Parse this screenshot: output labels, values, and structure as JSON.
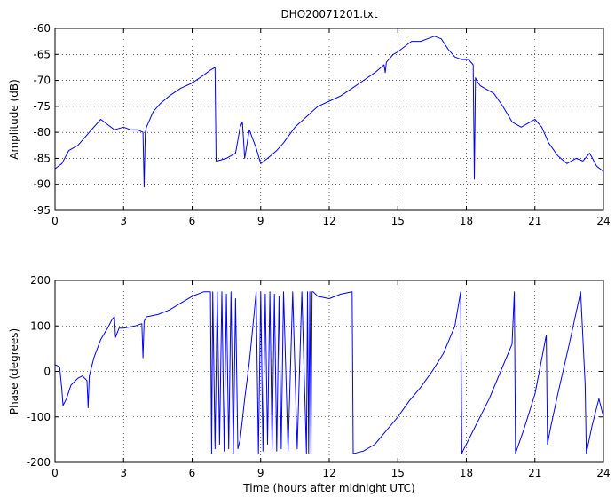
{
  "chart_data": [
    {
      "type": "line",
      "title": "DHO20071201.txt",
      "xlabel": "",
      "ylabel": "Amplitude (dB)",
      "xlim": [
        0,
        24
      ],
      "ylim": [
        -95,
        -60
      ],
      "xticks": [
        0,
        3,
        6,
        9,
        12,
        15,
        18,
        21,
        24
      ],
      "xtick_labels": [
        "0",
        "3",
        "6",
        "9",
        "12",
        "15",
        "18",
        "21",
        "24"
      ],
      "yticks": [
        -95,
        -90,
        -85,
        -80,
        -75,
        -70,
        -65,
        -60
      ],
      "ytick_labels": [
        "-95",
        "-90",
        "-85",
        "-80",
        "-75",
        "-70",
        "-65",
        "-60"
      ],
      "grid": "dotted",
      "color": "#0000ff",
      "series": [
        {
          "x": [
            0,
            0.3,
            0.6,
            1.0,
            1.5,
            2.0,
            2.3,
            2.6,
            3.0,
            3.3,
            3.6,
            3.85,
            3.9,
            3.95,
            4.0,
            4.3,
            4.6,
            5.0,
            5.5,
            6.0,
            6.5,
            6.8,
            7.0,
            7.05,
            7.1,
            7.5,
            7.9,
            8.1,
            8.2,
            8.3,
            8.5,
            8.8,
            9.0,
            9.3,
            9.7,
            10.0,
            10.5,
            11.0,
            11.5,
            12.0,
            12.5,
            13.0,
            13.5,
            14.0,
            14.4,
            14.45,
            14.5,
            14.8,
            15.0,
            15.3,
            15.6,
            16.0,
            16.3,
            16.6,
            16.9,
            17.2,
            17.5,
            17.8,
            18.1,
            18.3,
            18.35,
            18.4,
            18.45,
            18.6,
            18.8,
            19.2,
            19.6,
            20.0,
            20.4,
            20.8,
            21.0,
            21.3,
            21.6,
            22.0,
            22.4,
            22.8,
            23.1,
            23.4,
            23.7,
            24.0
          ],
          "y": [
            -87,
            -86,
            -83.5,
            -82.5,
            -80,
            -77.5,
            -78.5,
            -79.5,
            -79,
            -79.5,
            -79.5,
            -80,
            -90.5,
            -80,
            -79,
            -76,
            -74.5,
            -73,
            -71.5,
            -70.5,
            -69,
            -68,
            -67.5,
            -85.5,
            -85.5,
            -85,
            -84,
            -79,
            -78,
            -85,
            -79.5,
            -83,
            -86,
            -85,
            -83.5,
            -82,
            -79,
            -77,
            -75,
            -74,
            -73,
            -71.5,
            -70,
            -68.5,
            -67,
            -68.5,
            -66.5,
            -65,
            -64.5,
            -63.5,
            -62.5,
            -62.5,
            -62,
            -61.5,
            -62,
            -64,
            -65.5,
            -66,
            -66,
            -67,
            -89,
            -69.5,
            -70,
            -71,
            -71.5,
            -72.5,
            -75,
            -78,
            -79,
            -78,
            -77.5,
            -79,
            -82,
            -84.5,
            -86,
            -85,
            -85.5,
            -84,
            -86.5,
            -87.5
          ]
        }
      ]
    },
    {
      "type": "line",
      "title": "",
      "xlabel": "Time (hours after midnight UTC)",
      "ylabel": "Phase (degrees)",
      "xlim": [
        0,
        24
      ],
      "ylim": [
        -200,
        200
      ],
      "xticks": [
        0,
        3,
        6,
        9,
        12,
        15,
        18,
        21,
        24
      ],
      "xtick_labels": [
        "0",
        "3",
        "6",
        "9",
        "12",
        "15",
        "18",
        "21",
        "24"
      ],
      "yticks": [
        -200,
        -100,
        0,
        100,
        200
      ],
      "ytick_labels": [
        "-200",
        "-100",
        "0",
        "100",
        "200"
      ],
      "grid": "dotted",
      "color": "#0000ff",
      "series": [
        {
          "x": [
            0,
            0.2,
            0.3,
            0.35,
            0.5,
            0.7,
            1.0,
            1.2,
            1.4,
            1.45,
            1.5,
            1.7,
            2.0,
            2.3,
            2.5,
            2.6,
            2.65,
            2.8,
            3.0,
            3.5,
            3.8,
            3.85,
            3.9,
            4.0,
            4.5,
            5.0,
            5.5,
            6.0,
            6.5,
            6.8,
            6.85,
            6.9,
            7.0,
            7.1,
            7.2,
            7.3,
            7.4,
            7.5,
            7.6,
            7.7,
            7.8,
            7.9,
            8.0,
            8.1,
            8.3,
            8.5,
            8.7,
            8.8,
            8.9,
            9.0,
            9.1,
            9.2,
            9.3,
            9.4,
            9.5,
            9.6,
            9.7,
            9.8,
            9.9,
            10.0,
            10.2,
            10.4,
            10.6,
            10.8,
            11.0,
            11.05,
            11.1,
            11.15,
            11.2,
            11.25,
            11.3,
            11.5,
            12.0,
            12.5,
            13.0,
            13.05,
            13.1,
            13.5,
            14.0,
            14.5,
            15.0,
            15.5,
            16.0,
            16.5,
            17.0,
            17.5,
            17.75,
            17.8,
            17.9,
            18.5,
            19.0,
            19.5,
            20.0,
            20.1,
            20.15,
            20.5,
            21.0,
            21.5,
            21.55,
            21.7,
            22.0,
            22.5,
            23.0,
            23.2,
            23.25,
            23.5,
            23.8,
            24.0
          ],
          "y": [
            15,
            10,
            -40,
            -75,
            -60,
            -30,
            -15,
            -10,
            -20,
            -80,
            -10,
            30,
            70,
            95,
            115,
            120,
            75,
            95,
            95,
            100,
            105,
            30,
            110,
            120,
            125,
            135,
            150,
            165,
            175,
            175,
            -180,
            175,
            -170,
            175,
            -160,
            175,
            -175,
            170,
            -170,
            175,
            -180,
            160,
            -170,
            -150,
            -60,
            20,
            120,
            175,
            -180,
            175,
            -175,
            170,
            -160,
            175,
            -170,
            170,
            -175,
            165,
            -170,
            175,
            -175,
            175,
            -170,
            175,
            -180,
            175,
            -180,
            175,
            -180,
            175,
            175,
            165,
            160,
            170,
            175,
            -180,
            -180,
            -175,
            -160,
            -130,
            -100,
            -65,
            -35,
            0,
            40,
            100,
            175,
            -180,
            -170,
            -110,
            -60,
            0,
            60,
            175,
            -180,
            -130,
            -50,
            80,
            -160,
            -120,
            -50,
            60,
            175,
            -30,
            -180,
            -120,
            -60,
            -100
          ]
        }
      ]
    }
  ]
}
